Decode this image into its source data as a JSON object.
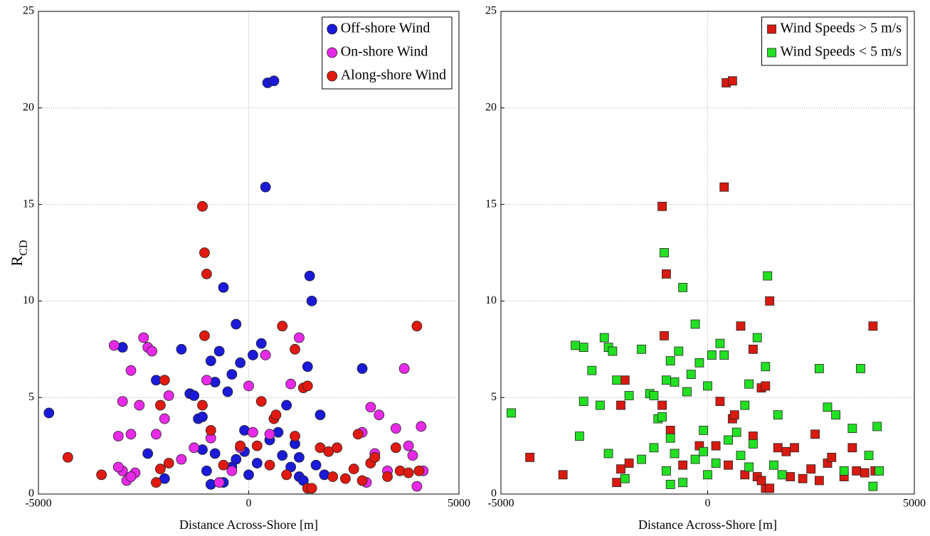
{
  "chart_data": [
    {
      "type": "scatter",
      "xlabel": "Distance Across-Shore [m]",
      "ylabel": {
        "text": "R",
        "subscript": "CD"
      },
      "xlim": [
        -5000,
        5000
      ],
      "ylim": [
        0,
        25
      ],
      "xticks": [
        -5000,
        0,
        5000
      ],
      "yticks": [
        0,
        5,
        10,
        15,
        20,
        25
      ],
      "grid": true,
      "legend": "upper-right",
      "marker": "circle",
      "series": [
        {
          "name": "Off-shore Wind",
          "color": "#1a1ad8",
          "x": [
            -4750,
            -3000,
            -2400,
            -2200,
            -2000,
            -1600,
            -1400,
            -1300,
            -1200,
            -1100,
            -900,
            -800,
            -700,
            -600,
            -500,
            -400,
            -300,
            -200,
            -100,
            100,
            300,
            400,
            450,
            600,
            700,
            800,
            900,
            1000,
            1100,
            1200,
            1400,
            1450,
            1500,
            1600,
            1700,
            1800,
            2700,
            -1000,
            -900,
            -600,
            -300,
            -100,
            200,
            500,
            1300,
            -800,
            0,
            -1100,
            -400,
            1200
          ],
          "y": [
            4.2,
            7.6,
            2.1,
            5.9,
            0.8,
            7.5,
            5.2,
            5.1,
            3.9,
            4.0,
            6.9,
            5.8,
            7.4,
            10.7,
            5.3,
            6.2,
            8.8,
            6.8,
            3.3,
            7.2,
            7.8,
            15.9,
            21.3,
            21.4,
            3.2,
            2.0,
            4.6,
            1.4,
            2.6,
            0.9,
            6.6,
            11.3,
            10.0,
            1.5,
            4.1,
            1.0,
            6.5,
            1.2,
            0.5,
            0.6,
            1.8,
            2.2,
            1.6,
            2.8,
            0.7,
            2.1,
            1.0,
            2.3,
            1.4,
            1.9
          ]
        },
        {
          "name": "On-shore Wind",
          "color": "#e82ae8",
          "x": [
            -3200,
            -3100,
            -3000,
            -3000,
            -2900,
            -2800,
            -2800,
            -2700,
            -2600,
            -2500,
            -2400,
            -2300,
            -2200,
            -2000,
            -1900,
            -1600,
            -1300,
            -1000,
            -900,
            -700,
            -400,
            -200,
            0,
            100,
            400,
            500,
            1000,
            1200,
            2700,
            2900,
            3100,
            3300,
            3500,
            3700,
            3800,
            3900,
            4000,
            4100,
            4150,
            2800,
            3000,
            -3100,
            -2800
          ],
          "y": [
            7.7,
            3.0,
            4.8,
            1.2,
            0.7,
            6.4,
            3.1,
            1.1,
            4.6,
            8.1,
            7.6,
            7.4,
            3.1,
            3.9,
            5.1,
            1.8,
            2.4,
            5.9,
            2.9,
            0.6,
            1.2,
            2.4,
            5.6,
            3.2,
            7.2,
            3.1,
            5.7,
            8.1,
            3.2,
            4.5,
            4.1,
            1.2,
            3.4,
            6.5,
            2.5,
            2.0,
            0.4,
            3.5,
            1.2,
            0.6,
            2.1,
            1.4,
            0.9
          ]
        },
        {
          "name": "Along-shore Wind",
          "color": "#e01a10",
          "x": [
            -4300,
            -3500,
            -2200,
            -2100,
            -1900,
            -2100,
            -2000,
            -1100,
            -1050,
            -1000,
            -1050,
            -1100,
            -900,
            -600,
            -200,
            200,
            300,
            500,
            600,
            650,
            800,
            900,
            1100,
            1100,
            1300,
            1400,
            1400,
            1500,
            1700,
            1900,
            2000,
            2100,
            2300,
            2500,
            2600,
            2700,
            2900,
            3000,
            3300,
            3500,
            3600,
            3800,
            4000,
            4050
          ],
          "y": [
            1.9,
            1.0,
            0.6,
            1.3,
            1.6,
            4.6,
            5.9,
            14.9,
            12.5,
            11.4,
            8.2,
            4.6,
            3.3,
            1.5,
            2.5,
            2.5,
            4.8,
            1.5,
            3.9,
            4.1,
            8.7,
            1.0,
            7.5,
            3.0,
            5.5,
            5.6,
            0.3,
            0.3,
            2.4,
            2.2,
            0.9,
            2.4,
            0.8,
            1.3,
            3.1,
            0.7,
            1.6,
            1.9,
            0.9,
            2.4,
            1.2,
            1.1,
            8.7,
            1.2
          ]
        }
      ]
    },
    {
      "type": "scatter",
      "xlabel": "Distance Across-Shore [m]",
      "xlim": [
        -5000,
        5000
      ],
      "ylim": [
        0,
        25
      ],
      "xticks": [
        -5000,
        0,
        5000
      ],
      "yticks": [
        0,
        5,
        10,
        15,
        20,
        25
      ],
      "grid": true,
      "legend": "upper-right",
      "marker": "square",
      "series": [
        {
          "name": "Wind Speeds > 5 m/s",
          "color": "#d81a10",
          "x": [
            -4300,
            -3500,
            -2200,
            -2100,
            -1900,
            -2100,
            -2000,
            -1100,
            -1000,
            -1050,
            -1100,
            -900,
            -600,
            -200,
            200,
            300,
            500,
            600,
            650,
            800,
            900,
            1100,
            1100,
            1300,
            1400,
            1400,
            1500,
            1700,
            1900,
            2000,
            2100,
            2300,
            2500,
            2600,
            2700,
            2900,
            3000,
            3300,
            3500,
            3600,
            3800,
            4000,
            4050,
            450,
            600,
            400,
            1500,
            1200,
            1300
          ],
          "y": [
            1.9,
            1.0,
            0.6,
            1.3,
            1.6,
            4.6,
            5.9,
            14.9,
            11.4,
            8.2,
            4.6,
            3.3,
            1.5,
            2.5,
            2.5,
            4.8,
            1.5,
            3.9,
            4.1,
            8.7,
            1.0,
            7.5,
            3.0,
            5.5,
            5.6,
            0.3,
            0.3,
            2.4,
            2.2,
            0.9,
            2.4,
            0.8,
            1.3,
            3.1,
            0.7,
            1.6,
            1.9,
            0.9,
            2.4,
            1.2,
            1.1,
            8.7,
            1.2,
            21.3,
            21.4,
            15.9,
            10.0,
            0.9,
            0.7
          ]
        },
        {
          "name": "Wind Speeds < 5 m/s",
          "color": "#22e022",
          "x": [
            -4750,
            -3000,
            -2400,
            -2200,
            -2000,
            -1600,
            -1400,
            -1300,
            -1200,
            -1100,
            -900,
            -800,
            -700,
            -600,
            -500,
            -400,
            -300,
            -200,
            -100,
            100,
            300,
            700,
            800,
            900,
            1000,
            1100,
            1400,
            1450,
            1600,
            1700,
            1800,
            2700,
            -1000,
            -900,
            -600,
            -300,
            -100,
            200,
            500,
            -800,
            0,
            -1050,
            -3200,
            -3100,
            -3000,
            -2800,
            -2600,
            -2500,
            -2400,
            -2300,
            -1900,
            -1600,
            -1300,
            -1000,
            -900,
            0,
            400,
            1000,
            1200,
            2900,
            3100,
            3300,
            3500,
            3700,
            3900,
            4000,
            4100,
            4150
          ],
          "y": [
            4.2,
            7.6,
            2.1,
            5.9,
            0.8,
            7.5,
            5.2,
            5.1,
            3.9,
            4.0,
            6.9,
            5.8,
            7.4,
            10.7,
            5.3,
            6.2,
            8.8,
            6.8,
            3.3,
            7.2,
            7.8,
            3.2,
            2.0,
            4.6,
            1.4,
            2.6,
            6.6,
            11.3,
            1.5,
            4.1,
            1.0,
            6.5,
            1.2,
            0.5,
            0.6,
            1.8,
            2.2,
            1.6,
            2.8,
            2.1,
            1.0,
            12.5,
            7.7,
            3.0,
            4.8,
            6.4,
            4.6,
            8.1,
            7.6,
            7.4,
            5.1,
            1.8,
            2.4,
            5.9,
            2.9,
            5.6,
            7.2,
            5.7,
            8.1,
            4.5,
            4.1,
            1.2,
            3.4,
            6.5,
            2.0,
            0.4,
            3.5,
            1.2
          ]
        }
      ]
    }
  ]
}
